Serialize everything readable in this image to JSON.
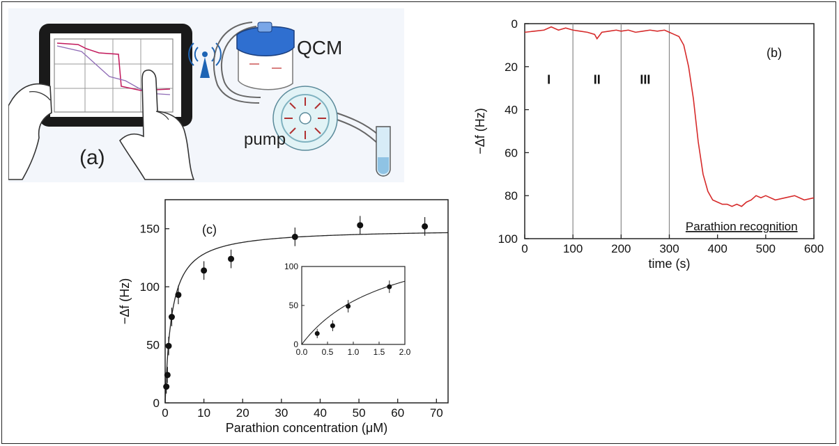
{
  "panel_a": {
    "label": "(a)",
    "qcm_label": "QCM",
    "pump_label": "pump"
  },
  "chart_data": [
    {
      "type": "line",
      "panel_label": "(b)",
      "xlabel": "time (s)",
      "ylabel": "−Δf (Hz)",
      "xlim": [
        0,
        600
      ],
      "ylim": [
        100,
        0
      ],
      "y_inverted": true,
      "xticks": [
        0,
        100,
        200,
        300,
        400,
        500,
        600
      ],
      "yticks": [
        0,
        20,
        40,
        60,
        80,
        100
      ],
      "vlines": [
        100,
        200,
        300
      ],
      "regions": [
        "I",
        "II",
        "III"
      ],
      "annotation": "Parathion recognition",
      "line_color": "#d62a2a",
      "series": [
        {
          "x": [
            0,
            20,
            40,
            55,
            70,
            85,
            100,
            115,
            130,
            145,
            150,
            160,
            175,
            190,
            200,
            215,
            230,
            245,
            260,
            275,
            290,
            300,
            310,
            320,
            330,
            340,
            350,
            360,
            370,
            380,
            390,
            400,
            410,
            420,
            430,
            440,
            450,
            460,
            470,
            480,
            490,
            500,
            520,
            540,
            560,
            580,
            600
          ],
          "y": [
            4,
            3.5,
            3,
            1.5,
            3,
            2,
            3,
            3.5,
            4,
            5,
            7,
            4,
            3.5,
            3,
            3.5,
            3,
            4,
            3.5,
            3,
            3.5,
            3,
            4,
            5,
            6,
            10,
            20,
            35,
            55,
            70,
            78,
            82,
            83,
            84,
            84,
            85,
            84,
            85,
            83,
            82,
            80,
            81,
            80,
            82,
            81,
            80,
            82,
            81
          ]
        }
      ]
    },
    {
      "type": "scatter",
      "panel_label": "(c)",
      "xlabel": "Parathion concentration (μM)",
      "ylabel": "−Δf (Hz)",
      "xlim": [
        0,
        73
      ],
      "ylim": [
        0,
        175
      ],
      "xticks": [
        0,
        10,
        20,
        30,
        40,
        50,
        60,
        70
      ],
      "yticks": [
        0,
        50,
        100,
        150
      ],
      "points": [
        {
          "x": 0.3,
          "y": 14,
          "err": 6
        },
        {
          "x": 0.6,
          "y": 24,
          "err": 7
        },
        {
          "x": 0.9,
          "y": 49,
          "err": 8
        },
        {
          "x": 1.7,
          "y": 74,
          "err": 8
        },
        {
          "x": 3.4,
          "y": 93,
          "err": 8
        },
        {
          "x": 10,
          "y": 114,
          "err": 8
        },
        {
          "x": 17,
          "y": 124,
          "err": 8
        },
        {
          "x": 33.5,
          "y": 143,
          "err": 8
        },
        {
          "x": 50.3,
          "y": 153,
          "err": 8
        },
        {
          "x": 67,
          "y": 152,
          "err": 8
        }
      ],
      "fit": {
        "model": "langmuir",
        "fmax": 150,
        "kd": 1.7
      },
      "inset": {
        "xlim": [
          0,
          2.0
        ],
        "ylim": [
          0,
          100
        ],
        "xticks": [
          "0.0",
          "0.5",
          "1.0",
          "1.5",
          "2.0"
        ],
        "yticks": [
          "0",
          "50",
          "100"
        ],
        "points": [
          {
            "x": 0.3,
            "y": 14,
            "err": 6
          },
          {
            "x": 0.6,
            "y": 24,
            "err": 7
          },
          {
            "x": 0.9,
            "y": 49,
            "err": 8
          },
          {
            "x": 1.7,
            "y": 74,
            "err": 8
          }
        ]
      }
    }
  ]
}
